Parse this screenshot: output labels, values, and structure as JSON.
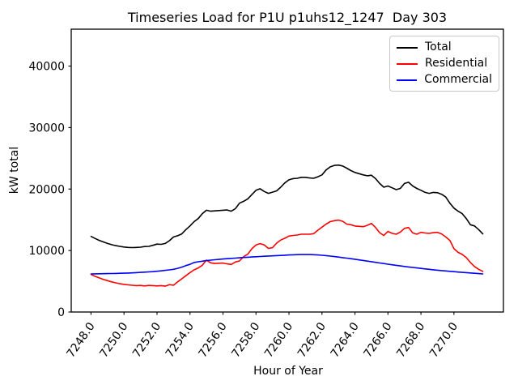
{
  "chart_data": {
    "type": "line",
    "title": "Timeseries Load for P1U p1uhs12_1247  Day 303",
    "xlabel": "Hour of Year",
    "ylabel": "kW total",
    "grid": false,
    "legend_position": "upper right",
    "xlim": [
      7246.8,
      7273.0
    ],
    "ylim": [
      0,
      46000
    ],
    "xticks": [
      7248,
      7250,
      7252,
      7254,
      7256,
      7258,
      7260,
      7262,
      7264,
      7266,
      7268,
      7270
    ],
    "xtick_labels": [
      "7248.0",
      "7250.0",
      "7252.0",
      "7254.0",
      "7256.0",
      "7258.0",
      "7260.0",
      "7262.0",
      "7264.0",
      "7266.0",
      "7268.0",
      "7270.0"
    ],
    "yticks": [
      0,
      10000,
      20000,
      30000,
      40000
    ],
    "ytick_labels": [
      "0",
      "10000",
      "20000",
      "30000",
      "40000"
    ],
    "x_start": 7248.0,
    "x_step": 0.25,
    "n_points": 96,
    "series": [
      {
        "name": "Total",
        "color": "#000000",
        "values": [
          12300,
          11950,
          11650,
          11400,
          11150,
          10950,
          10800,
          10680,
          10570,
          10500,
          10480,
          10500,
          10550,
          10650,
          10680,
          10850,
          11050,
          11000,
          11150,
          11600,
          12200,
          12400,
          12700,
          13400,
          14000,
          14700,
          15200,
          16000,
          16550,
          16400,
          16450,
          16500,
          16550,
          16600,
          16400,
          16800,
          17700,
          18000,
          18400,
          19100,
          19800,
          20050,
          19600,
          19300,
          19500,
          19700,
          20300,
          21000,
          21500,
          21700,
          21750,
          21900,
          21900,
          21800,
          21750,
          22000,
          22300,
          23100,
          23600,
          23850,
          23900,
          23750,
          23400,
          23000,
          22700,
          22500,
          22300,
          22150,
          22250,
          21700,
          20900,
          20300,
          20500,
          20200,
          19900,
          20100,
          20900,
          21100,
          20500,
          20100,
          19800,
          19450,
          19300,
          19450,
          19400,
          19150,
          18700,
          17700,
          16900,
          16400,
          16000,
          15200,
          14200,
          14000,
          13400,
          12700
        ]
      },
      {
        "name": "Residential",
        "color": "#ff0000",
        "values": [
          6100,
          5800,
          5550,
          5300,
          5100,
          4900,
          4750,
          4600,
          4500,
          4420,
          4350,
          4300,
          4320,
          4250,
          4320,
          4300,
          4250,
          4300,
          4200,
          4450,
          4350,
          4900,
          5400,
          5900,
          6400,
          6850,
          7170,
          7610,
          8450,
          8000,
          7900,
          7930,
          7960,
          7830,
          7740,
          8130,
          8300,
          9000,
          9400,
          10300,
          10900,
          11120,
          10900,
          10350,
          10460,
          11200,
          11700,
          12000,
          12350,
          12450,
          12520,
          12650,
          12650,
          12650,
          12740,
          13300,
          13800,
          14300,
          14700,
          14850,
          14950,
          14760,
          14300,
          14190,
          13980,
          13930,
          13880,
          14100,
          14410,
          13750,
          12900,
          12440,
          13100,
          12800,
          12650,
          13000,
          13600,
          13750,
          12870,
          12650,
          12960,
          12850,
          12790,
          12900,
          12960,
          12700,
          12200,
          11650,
          10300,
          9700,
          9370,
          8840,
          8050,
          7400,
          6950,
          6600
        ]
      },
      {
        "name": "Commercial",
        "color": "#0000ff",
        "values": [
          6200,
          6210,
          6220,
          6230,
          6250,
          6260,
          6280,
          6300,
          6320,
          6340,
          6370,
          6400,
          6440,
          6480,
          6520,
          6570,
          6630,
          6700,
          6770,
          6850,
          6950,
          7100,
          7300,
          7550,
          7750,
          8050,
          8170,
          8270,
          8360,
          8430,
          8500,
          8560,
          8620,
          8670,
          8720,
          8770,
          8820,
          8870,
          8910,
          8950,
          8990,
          9030,
          9070,
          9110,
          9140,
          9170,
          9200,
          9240,
          9280,
          9310,
          9330,
          9350,
          9350,
          9340,
          9320,
          9280,
          9230,
          9170,
          9100,
          9020,
          8940,
          8850,
          8760,
          8670,
          8580,
          8480,
          8380,
          8280,
          8180,
          8080,
          7980,
          7880,
          7780,
          7680,
          7590,
          7500,
          7410,
          7330,
          7250,
          7170,
          7090,
          7010,
          6940,
          6870,
          6800,
          6740,
          6680,
          6620,
          6560,
          6500,
          6450,
          6400,
          6350,
          6300,
          6250,
          6200
        ]
      }
    ]
  }
}
